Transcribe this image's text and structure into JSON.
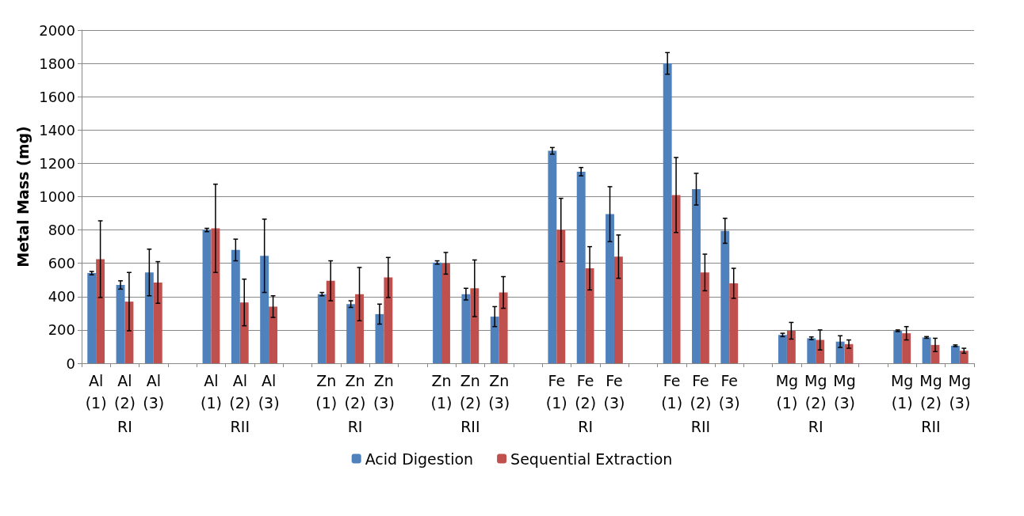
{
  "chart_data": {
    "type": "bar",
    "ylabel": "Metal Mass (mg)",
    "categories": [
      "Al (1)",
      "Al (2)",
      "Al (3)",
      null,
      "Al (1)",
      "Al (2)",
      "Al (3)",
      null,
      "Zn (1)",
      "Zn (2)",
      "Zn (3)",
      null,
      "Zn (1)",
      "Zn (2)",
      "Zn (3)",
      null,
      "Fe (1)",
      "Fe (2)",
      "Fe (3)",
      null,
      "Fe (1)",
      "Fe (2)",
      "Fe (3)",
      null,
      "Mg (1)",
      "Mg (2)",
      "Mg (3)",
      null,
      "Mg (1)",
      "Mg (2)",
      "Mg (3)"
    ],
    "annotations": [
      "RI",
      "RII",
      "RI",
      "RII",
      "RI",
      "RII",
      "RI",
      "RII"
    ],
    "series": [
      {
        "name": "Acid Digestion",
        "color": "#4f81bd",
        "values": [
          541,
          470,
          545,
          null,
          800,
          680,
          645,
          null,
          415,
          355,
          295,
          null,
          605,
          415,
          280,
          null,
          1275,
          1150,
          895,
          null,
          1800,
          1045,
          795,
          null,
          170,
          150,
          130,
          null,
          195,
          155,
          105
        ],
        "errors": [
          10,
          25,
          140,
          null,
          10,
          65,
          220,
          null,
          10,
          20,
          60,
          null,
          10,
          35,
          60,
          null,
          20,
          25,
          165,
          null,
          65,
          95,
          75,
          null,
          10,
          8,
          35,
          null,
          5,
          5,
          5
        ]
      },
      {
        "name": "Sequential Extraction",
        "color": "#c0504d",
        "values": [
          625,
          370,
          485,
          null,
          810,
          365,
          340,
          null,
          495,
          415,
          515,
          null,
          600,
          450,
          425,
          null,
          800,
          570,
          640,
          null,
          1010,
          545,
          480,
          null,
          195,
          140,
          115,
          null,
          180,
          110,
          75
        ],
        "errors": [
          230,
          175,
          125,
          null,
          265,
          140,
          65,
          null,
          120,
          160,
          120,
          null,
          65,
          170,
          95,
          null,
          190,
          130,
          130,
          null,
          225,
          110,
          90,
          null,
          50,
          60,
          25,
          null,
          40,
          40,
          15
        ]
      }
    ],
    "ylim": [
      0,
      2000
    ],
    "yticks": [
      0,
      200,
      400,
      600,
      800,
      1000,
      1200,
      1400,
      1600,
      1800,
      2000
    ],
    "grid": "y",
    "legend": "bottom"
  }
}
